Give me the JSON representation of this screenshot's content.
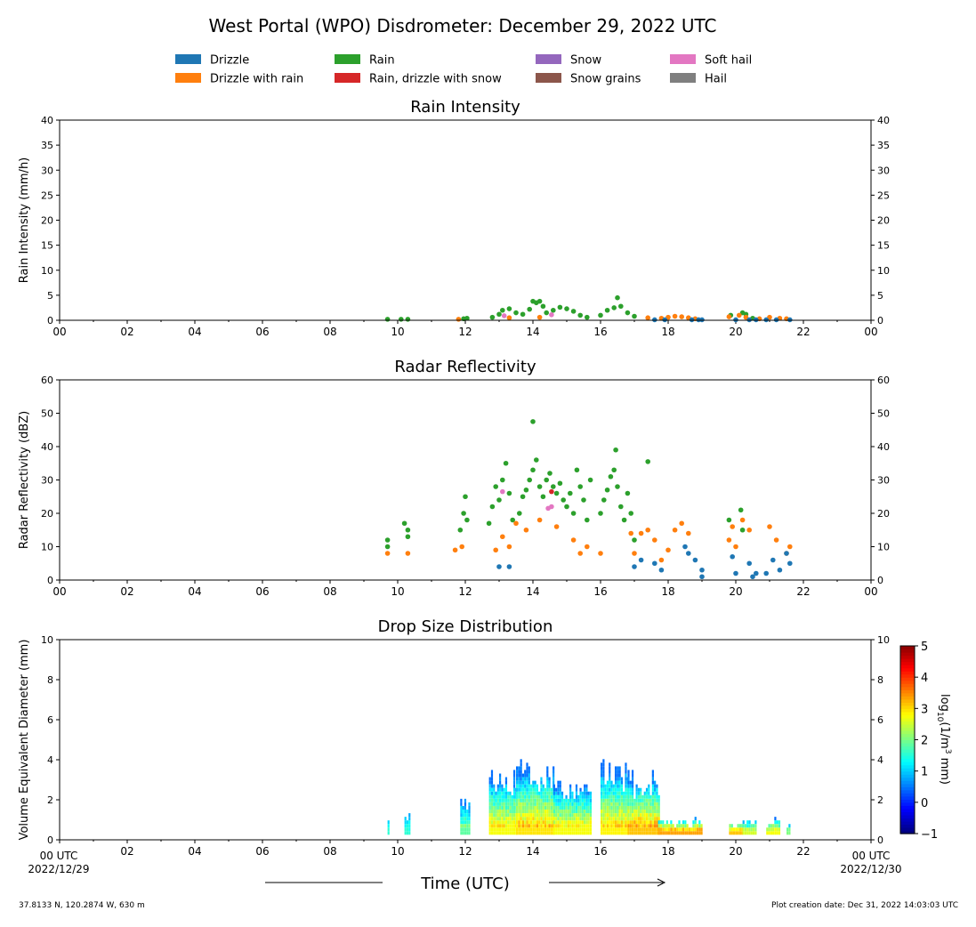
{
  "title": "West Portal (WPO) Disdrometer: December 29, 2022 UTC",
  "legend": {
    "items": [
      {
        "label": "Drizzle",
        "color": "#1f77b4"
      },
      {
        "label": "Drizzle with rain",
        "color": "#ff7f0e"
      },
      {
        "label": "Rain",
        "color": "#2ca02c"
      },
      {
        "label": "Rain, drizzle with snow",
        "color": "#d62728"
      },
      {
        "label": "Snow",
        "color": "#9467bd"
      },
      {
        "label": "Snow grains",
        "color": "#8c564b"
      },
      {
        "label": "Soft hail",
        "color": "#e377c2"
      },
      {
        "label": "Hail",
        "color": "#7f7f7f"
      }
    ]
  },
  "xaxis": {
    "tick_labels": [
      "00",
      "02",
      "04",
      "06",
      "08",
      "10",
      "12",
      "14",
      "16",
      "18",
      "20",
      "22",
      "00"
    ],
    "bottom_first_label": "00 UTC",
    "bottom_first_date": "2022/12/29",
    "bottom_last_label": "00 UTC",
    "bottom_last_date": "2022/12/30",
    "label": "Time (UTC)"
  },
  "chart_data": [
    {
      "type": "scatter",
      "title": "Rain Intensity",
      "ylabel": "Rain Intensity (mm/h)",
      "xlim": [
        0,
        24
      ],
      "ylim": [
        0,
        40
      ],
      "yticks": [
        "0",
        "5",
        "10",
        "15",
        "20",
        "25",
        "30",
        "35",
        "40"
      ],
      "series": [
        {
          "color": "#2ca02c",
          "x": [
            9.7,
            10.1,
            10.3,
            11.95,
            12.05,
            12.8,
            13.0,
            13.1,
            13.3,
            13.5,
            13.7,
            13.9,
            14.0,
            14.1,
            14.2,
            14.3,
            14.4,
            14.6,
            14.8,
            15.0,
            15.2,
            15.4,
            15.6,
            16.0,
            16.2,
            16.4,
            16.5,
            16.6,
            16.8,
            17.0,
            19.85,
            20.2,
            20.3,
            20.5
          ],
          "y": [
            0.2,
            0.2,
            0.2,
            0.3,
            0.4,
            0.6,
            1.2,
            2.0,
            2.3,
            1.5,
            1.2,
            2.2,
            3.8,
            3.5,
            3.8,
            2.8,
            1.5,
            2.0,
            2.6,
            2.3,
            1.8,
            1.0,
            0.6,
            1.0,
            2.0,
            2.5,
            4.5,
            2.8,
            1.5,
            0.8,
            1.0,
            1.5,
            1.2,
            0.4
          ]
        },
        {
          "color": "#ff7f0e",
          "x": [
            11.8,
            13.3,
            14.2,
            17.4,
            17.8,
            18.0,
            18.2,
            18.4,
            18.6,
            18.8,
            19.8,
            20.1,
            20.3,
            20.7,
            21.0,
            21.3,
            21.5
          ],
          "y": [
            0.2,
            0.5,
            0.6,
            0.5,
            0.4,
            0.6,
            0.8,
            0.7,
            0.5,
            0.3,
            0.7,
            1.0,
            0.6,
            0.3,
            0.6,
            0.4,
            0.3
          ]
        },
        {
          "color": "#1f77b4",
          "x": [
            17.6,
            17.9,
            18.7,
            18.9,
            19.0,
            20.0,
            20.4,
            20.6,
            20.9,
            21.2,
            21.6
          ],
          "y": [
            0.1,
            0.1,
            0.1,
            0.1,
            0.1,
            0.1,
            0.1,
            0.1,
            0.1,
            0.1,
            0.1
          ]
        },
        {
          "color": "#e377c2",
          "x": [
            13.15,
            14.55
          ],
          "y": [
            0.9,
            1.1
          ]
        }
      ]
    },
    {
      "type": "scatter",
      "title": "Radar Reflectivity",
      "ylabel": "Radar Reflectivity (dBZ)",
      "xlim": [
        0,
        24
      ],
      "ylim": [
        0,
        60
      ],
      "yticks": [
        "0",
        "10",
        "20",
        "30",
        "40",
        "50",
        "60"
      ],
      "series": [
        {
          "color": "#2ca02c",
          "x": [
            9.7,
            9.7,
            10.2,
            10.3,
            10.3,
            11.85,
            11.95,
            12.0,
            12.05,
            12.7,
            12.8,
            12.9,
            13.0,
            13.1,
            13.2,
            13.3,
            13.4,
            13.6,
            13.7,
            13.8,
            13.9,
            14.0,
            14.0,
            14.1,
            14.2,
            14.3,
            14.4,
            14.5,
            14.6,
            14.7,
            14.8,
            14.9,
            15.0,
            15.1,
            15.2,
            15.3,
            15.4,
            15.5,
            15.6,
            15.7,
            16.0,
            16.1,
            16.2,
            16.3,
            16.4,
            16.45,
            16.5,
            16.6,
            16.7,
            16.8,
            16.9,
            17.0,
            17.4,
            19.8,
            20.15,
            20.2
          ],
          "y": [
            10,
            12,
            17,
            15,
            13,
            15,
            20,
            25,
            18,
            17,
            22,
            28,
            24,
            30,
            35,
            26,
            18,
            20,
            25,
            27,
            30,
            47.5,
            33,
            36,
            28,
            25,
            30,
            32,
            28,
            26,
            29,
            24,
            22,
            26,
            20,
            33,
            28,
            24,
            18,
            30,
            20,
            24,
            27,
            31,
            33,
            39,
            28,
            22,
            18,
            26,
            20,
            12,
            35.5,
            18,
            21,
            15
          ]
        },
        {
          "color": "#ff7f0e",
          "x": [
            9.7,
            10.3,
            11.7,
            11.9,
            12.9,
            13.1,
            13.3,
            13.5,
            13.8,
            14.2,
            14.7,
            15.2,
            15.4,
            15.6,
            16.0,
            16.9,
            17.0,
            17.2,
            17.4,
            17.6,
            17.8,
            18.0,
            18.2,
            18.4,
            18.6,
            19.8,
            19.9,
            20.0,
            20.2,
            20.4,
            21.0,
            21.2,
            21.5,
            21.6
          ],
          "y": [
            8,
            8,
            9,
            10,
            9,
            13,
            10,
            17,
            15,
            18,
            16,
            12,
            8,
            10,
            8,
            14,
            8,
            14,
            15,
            12,
            6,
            9,
            15,
            17,
            14,
            12,
            16,
            10,
            18,
            15,
            16,
            12,
            8,
            10
          ]
        },
        {
          "color": "#1f77b4",
          "x": [
            13.0,
            13.3,
            17.0,
            17.2,
            17.6,
            17.8,
            18.5,
            18.6,
            18.8,
            19.0,
            19.0,
            19.9,
            20.0,
            20.4,
            20.5,
            20.6,
            20.9,
            21.1,
            21.3,
            21.5,
            21.6
          ],
          "y": [
            4,
            4,
            4,
            6,
            5,
            3,
            10,
            8,
            6,
            3,
            1,
            7,
            2,
            5,
            1,
            2,
            2,
            6,
            3,
            8,
            5
          ]
        },
        {
          "color": "#d62728",
          "x": [
            14.55
          ],
          "y": [
            26.5
          ]
        },
        {
          "color": "#e377c2",
          "x": [
            13.1,
            14.55,
            14.45
          ],
          "y": [
            26.5,
            22,
            21.5
          ]
        }
      ]
    },
    {
      "type": "heatmap",
      "title": "Drop Size Distribution",
      "ylabel": "Volume Equivalent Diameter (mm)",
      "xlim": [
        0,
        24
      ],
      "ylim": [
        0,
        10
      ],
      "yticks": [
        "0",
        "2",
        "4",
        "6",
        "8",
        "10"
      ],
      "colorbar": {
        "label": "log10(1/m3 mm)",
        "range": [
          -1,
          5
        ],
        "ticks": [
          "−1",
          "0",
          "1",
          "2",
          "3",
          "4",
          "5"
        ]
      },
      "bursts": [
        {
          "start": 9.7,
          "end": 9.75,
          "top": 1.0,
          "peak": 2.0
        },
        {
          "start": 10.2,
          "end": 10.35,
          "top": 1.3,
          "peak": 2.0
        },
        {
          "start": 11.85,
          "end": 12.15,
          "top": 2.2,
          "peak": 2.3
        },
        {
          "start": 12.7,
          "end": 13.5,
          "top": 3.5,
          "peak": 3.2
        },
        {
          "start": 13.5,
          "end": 14.6,
          "top": 4.0,
          "peak": 3.4
        },
        {
          "start": 14.6,
          "end": 15.7,
          "top": 3.0,
          "peak": 3.2
        },
        {
          "start": 16.0,
          "end": 16.8,
          "top": 4.0,
          "peak": 3.3
        },
        {
          "start": 16.8,
          "end": 17.7,
          "top": 3.5,
          "peak": 3.6
        },
        {
          "start": 17.7,
          "end": 19.0,
          "top": 1.0,
          "peak": 3.8
        },
        {
          "start": 19.8,
          "end": 20.2,
          "top": 0.8,
          "peak": 3.6
        },
        {
          "start": 20.2,
          "end": 20.6,
          "top": 0.9,
          "peak": 3.0
        },
        {
          "start": 20.9,
          "end": 21.3,
          "top": 1.0,
          "peak": 3.2
        },
        {
          "start": 21.5,
          "end": 21.6,
          "top": 0.8,
          "peak": 2.5
        }
      ]
    }
  ],
  "footer": {
    "location": "37.8133 N, 120.2874 W, 630 m",
    "creation": "Plot creation date: Dec 31, 2022 14:03:03 UTC"
  }
}
